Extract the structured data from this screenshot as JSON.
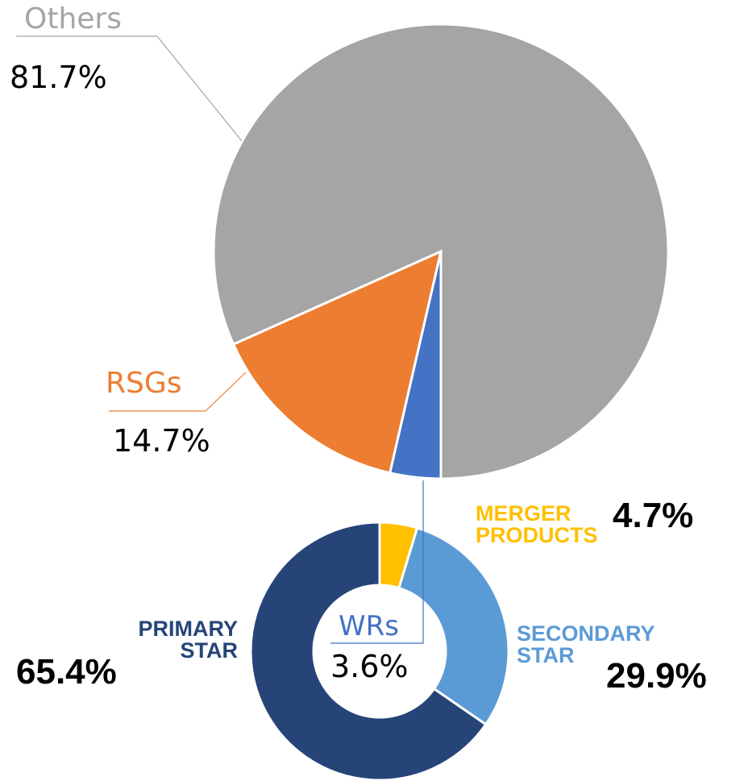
{
  "chart_data": [
    {
      "type": "pie",
      "start_angle": 180,
      "direction": "clockwise",
      "categories": [
        "WRs",
        "RSGs",
        "Others"
      ],
      "values": [
        3.6,
        14.7,
        81.7
      ],
      "value_labels": [
        "3.6%",
        "14.7%",
        "81.7%"
      ],
      "colors": [
        "#4472c4",
        "#ed7d31",
        "#a5a5a5"
      ]
    },
    {
      "type": "donut",
      "start_angle": 0,
      "direction": "clockwise",
      "categories": [
        "MERGER PRODUCTS",
        "SECONDARY STAR",
        "PRIMARY STAR"
      ],
      "values": [
        4.7,
        29.9,
        65.4
      ],
      "value_labels": [
        "4.7%",
        "29.9%",
        "65.4%"
      ],
      "colors": [
        "#ffc000",
        "#5b9bd5",
        "#264478"
      ]
    }
  ]
}
